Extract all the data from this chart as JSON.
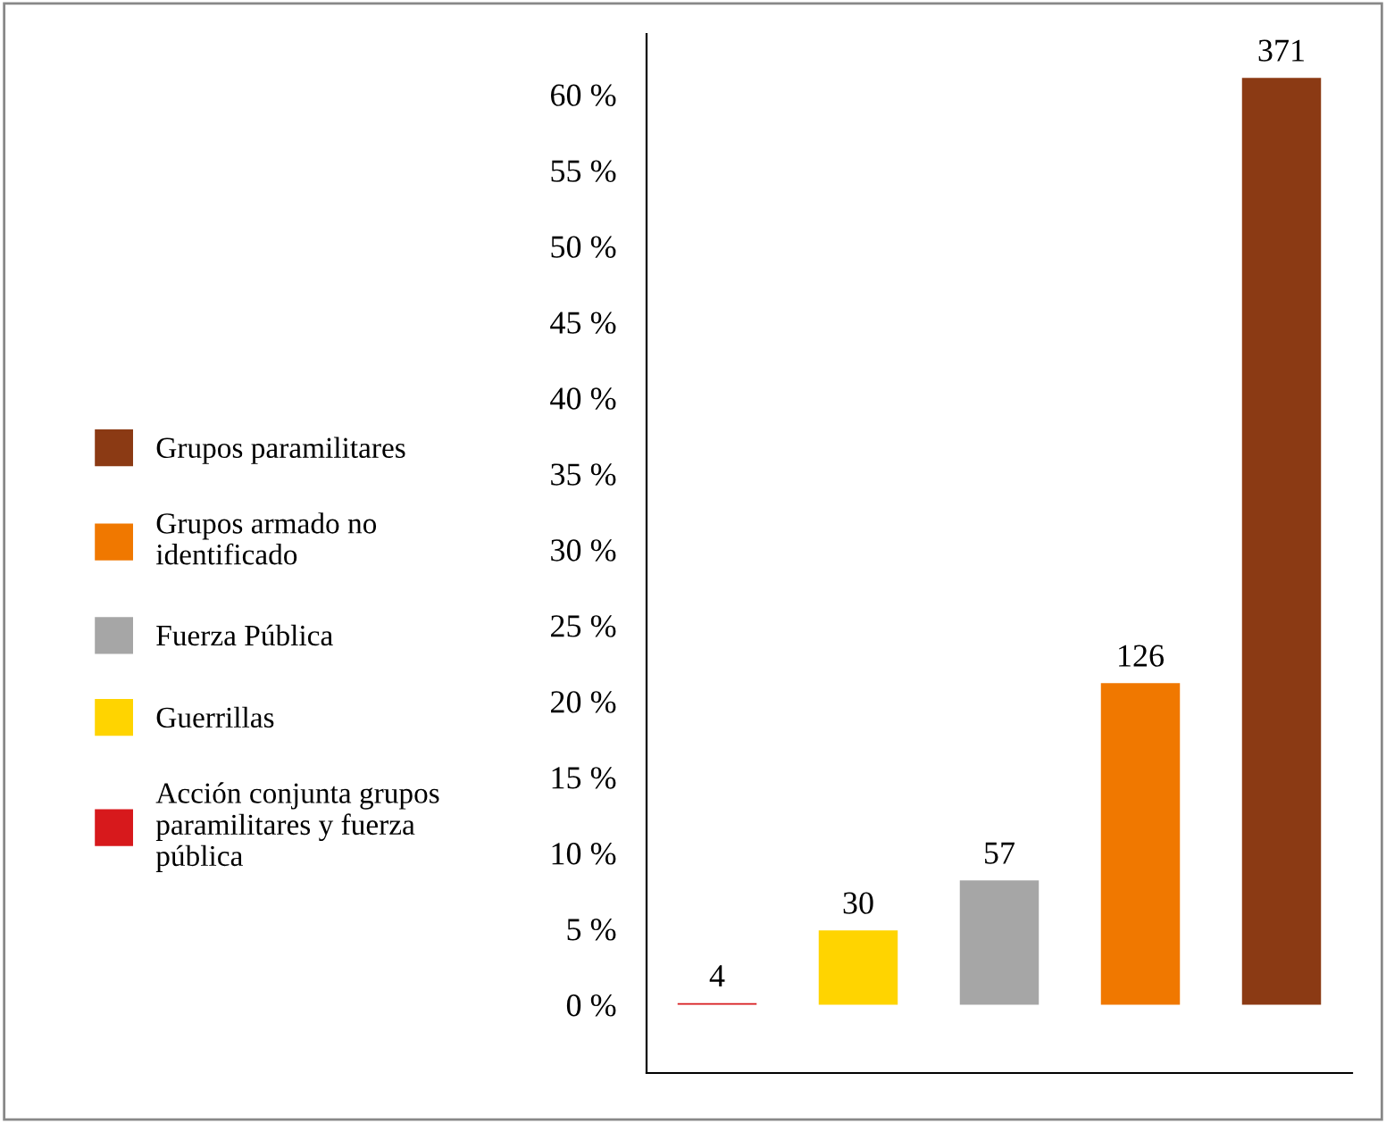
{
  "chart_data": {
    "type": "bar",
    "categories": [
      null,
      null,
      null,
      null,
      null
    ],
    "series": [
      {
        "name": "Acción conjunta grupos paramilitares y fuerza pública",
        "color": "#d7191c",
        "values": [
          0.1,
          null,
          null,
          null,
          null
        ]
      },
      {
        "name": "Guerrillas",
        "color": "#ffd400",
        "values": [
          null,
          4.9,
          null,
          null,
          null
        ]
      },
      {
        "name": "Fuerza Pública",
        "color": "#a6a6a6",
        "values": [
          null,
          null,
          8.2,
          null,
          null
        ]
      },
      {
        "name": "Grupos armado no identificado",
        "color": "#f07800",
        "values": [
          null,
          null,
          null,
          21.2,
          null
        ]
      },
      {
        "name": "Grupos paramilitares",
        "color": "#8b3a14",
        "values": [
          null,
          null,
          null,
          null,
          61.1
        ]
      }
    ],
    "annotations": [
      "4",
      "30",
      "57",
      "126",
      "371"
    ],
    "ylim": [
      -4.5,
      64
    ],
    "yticks": [
      {
        "value": 0,
        "label": "0 %"
      },
      {
        "value": 5,
        "label": "5 %"
      },
      {
        "value": 10,
        "label": "10 %"
      },
      {
        "value": 15,
        "label": "15 %"
      },
      {
        "value": 20,
        "label": "20 %"
      },
      {
        "value": 25,
        "label": "25 %"
      },
      {
        "value": 30,
        "label": "30 %"
      },
      {
        "value": 35,
        "label": "35 %"
      },
      {
        "value": 40,
        "label": "40 %"
      },
      {
        "value": 45,
        "label": "45 %"
      },
      {
        "value": 50,
        "label": "50 %"
      },
      {
        "value": 55,
        "label": "55 %"
      },
      {
        "value": 60,
        "label": "60 %"
      }
    ],
    "grid": false,
    "legend": "left"
  }
}
